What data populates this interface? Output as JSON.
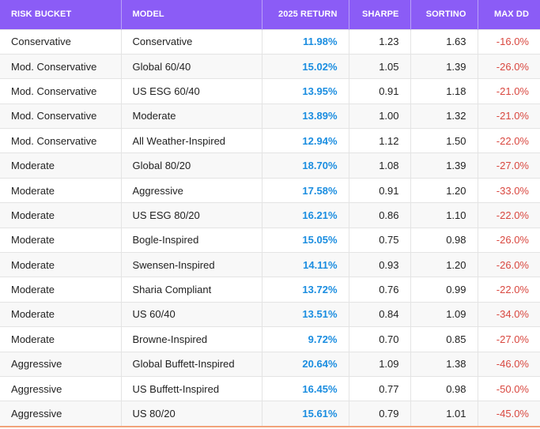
{
  "table": {
    "columns": [
      "RISK BUCKET",
      "MODEL",
      "2025 RETURN",
      "SHARPE",
      "SORTINO",
      "MAX DD"
    ],
    "rows": [
      {
        "bucket": "Conservative",
        "model": "Conservative",
        "ret": "11.98%",
        "sharpe": "1.23",
        "sortino": "1.63",
        "maxdd": "-16.0%"
      },
      {
        "bucket": "Mod. Conservative",
        "model": "Global 60/40",
        "ret": "15.02%",
        "sharpe": "1.05",
        "sortino": "1.39",
        "maxdd": "-26.0%"
      },
      {
        "bucket": "Mod. Conservative",
        "model": "US ESG 60/40",
        "ret": "13.95%",
        "sharpe": "0.91",
        "sortino": "1.18",
        "maxdd": "-21.0%"
      },
      {
        "bucket": "Mod. Conservative",
        "model": "Moderate",
        "ret": "13.89%",
        "sharpe": "1.00",
        "sortino": "1.32",
        "maxdd": "-21.0%"
      },
      {
        "bucket": "Mod. Conservative",
        "model": "All Weather-Inspired",
        "ret": "12.94%",
        "sharpe": "1.12",
        "sortino": "1.50",
        "maxdd": "-22.0%"
      },
      {
        "bucket": "Moderate",
        "model": "Global 80/20",
        "ret": "18.70%",
        "sharpe": "1.08",
        "sortino": "1.39",
        "maxdd": "-27.0%"
      },
      {
        "bucket": "Moderate",
        "model": "Aggressive",
        "ret": "17.58%",
        "sharpe": "0.91",
        "sortino": "1.20",
        "maxdd": "-33.0%"
      },
      {
        "bucket": "Moderate",
        "model": "US ESG 80/20",
        "ret": "16.21%",
        "sharpe": "0.86",
        "sortino": "1.10",
        "maxdd": "-22.0%"
      },
      {
        "bucket": "Moderate",
        "model": "Bogle-Inspired",
        "ret": "15.05%",
        "sharpe": "0.75",
        "sortino": "0.98",
        "maxdd": "-26.0%"
      },
      {
        "bucket": "Moderate",
        "model": "Swensen-Inspired",
        "ret": "14.11%",
        "sharpe": "0.93",
        "sortino": "1.20",
        "maxdd": "-26.0%"
      },
      {
        "bucket": "Moderate",
        "model": "Sharia Compliant",
        "ret": "13.72%",
        "sharpe": "0.76",
        "sortino": "0.99",
        "maxdd": "-22.0%"
      },
      {
        "bucket": "Moderate",
        "model": "US 60/40",
        "ret": "13.51%",
        "sharpe": "0.84",
        "sortino": "1.09",
        "maxdd": "-34.0%"
      },
      {
        "bucket": "Moderate",
        "model": "Browne-Inspired",
        "ret": "9.72%",
        "sharpe": "0.70",
        "sortino": "0.85",
        "maxdd": "-27.0%"
      },
      {
        "bucket": "Aggressive",
        "model": "Global Buffett-Inspired",
        "ret": "20.64%",
        "sharpe": "1.09",
        "sortino": "1.38",
        "maxdd": "-46.0%"
      },
      {
        "bucket": "Aggressive",
        "model": "US Buffett-Inspired",
        "ret": "16.45%",
        "sharpe": "0.77",
        "sortino": "0.98",
        "maxdd": "-50.0%"
      },
      {
        "bucket": "Aggressive",
        "model": "US 80/20",
        "ret": "15.61%",
        "sharpe": "0.79",
        "sortino": "1.01",
        "maxdd": "-45.0%"
      }
    ]
  },
  "colors": {
    "header_bg": "#8b5cf6",
    "return_text": "#1a8de0",
    "maxdd_text": "#d9473f"
  }
}
